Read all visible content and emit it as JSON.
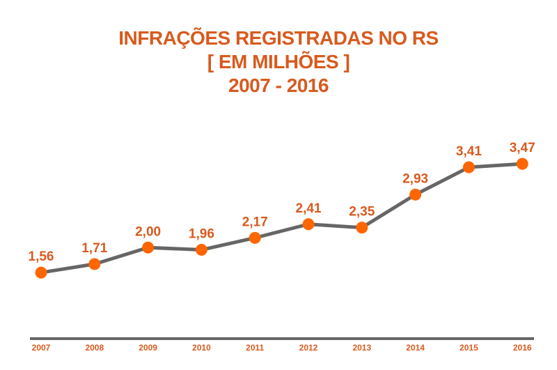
{
  "chart_data": {
    "type": "line",
    "title": [
      "INFRAÇÕES REGISTRADAS NO RS",
      "[ EM MILHÕES ]",
      "2007 - 2016"
    ],
    "categories": [
      "2007",
      "2008",
      "2009",
      "2010",
      "2011",
      "2012",
      "2013",
      "2014",
      "2015",
      "2016"
    ],
    "values": [
      1.56,
      1.71,
      2.0,
      1.96,
      2.17,
      2.41,
      2.35,
      2.93,
      3.41,
      3.47
    ],
    "data_labels": [
      "1,56",
      "1,71",
      "2,00",
      "1,96",
      "2,17",
      "2,41",
      "2,35",
      "2,93",
      "3,41",
      "3,47"
    ],
    "xlabel": "",
    "ylabel": "",
    "ylim": [
      0.4,
      3.9
    ],
    "grid": false,
    "legend": "none",
    "colors": {
      "title": "#d85a1e",
      "labels": "#d85a1e",
      "marker": "#ff6600",
      "line": "#666666",
      "axis": "#666666"
    }
  }
}
